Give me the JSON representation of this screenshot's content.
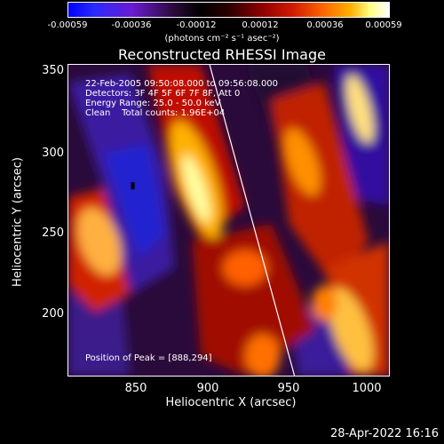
{
  "colorbar": {
    "ticks": [
      "-0.00059",
      "-0.00036",
      "-0.00012",
      "0.00012",
      "0.00036",
      "0.00059"
    ],
    "units": "(photons cm⁻² s⁻¹ asec⁻²)"
  },
  "title": "Reconstructed RHESSI Image",
  "annotation": {
    "time_range": "22-Feb-2005 09:50:08.000 to 09:56:08.000",
    "detectors": "Detectors: 3F 4F 5F 6F 7F 8F, Att 0",
    "energy": "Energy Range: 25.0 - 50.0 keV",
    "clean": "Clean    Total counts: 1.96E+04",
    "peak": "Position of Peak = [888,294]"
  },
  "axes": {
    "x_label": "Heliocentric X (arcsec)",
    "y_label": "Heliocentric Y (arcsec)",
    "x_ticks": [
      "850",
      "900",
      "950",
      "1000"
    ],
    "y_ticks": [
      "350",
      "300",
      "250",
      "200"
    ]
  },
  "timestamp": "28-Apr-2022 16:16",
  "chart_data": {
    "type": "heatmap",
    "title": "Reconstructed RHESSI Image",
    "xlabel": "Heliocentric X (arcsec)",
    "ylabel": "Heliocentric Y (arcsec)",
    "xlim": [
      813,
      1013
    ],
    "ylim": [
      155,
      355
    ],
    "colorbar_range": [
      -0.00059,
      0.00059
    ],
    "peak_position": [
      888,
      294
    ],
    "colormap": "blue-purple-black-red-orange-yellow-white"
  }
}
